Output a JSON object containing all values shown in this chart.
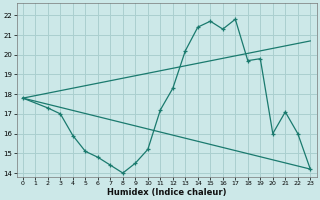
{
  "xlabel": "Humidex (Indice chaleur)",
  "bg_color": "#cce8e8",
  "grid_color": "#aacfcf",
  "line_color": "#1a7a6e",
  "xlim": [
    -0.5,
    23.5
  ],
  "ylim": [
    13.8,
    22.6
  ],
  "yticks": [
    14,
    15,
    16,
    17,
    18,
    19,
    20,
    21,
    22
  ],
  "xticks": [
    0,
    1,
    2,
    3,
    4,
    5,
    6,
    7,
    8,
    9,
    10,
    11,
    12,
    13,
    14,
    15,
    16,
    17,
    18,
    19,
    20,
    21,
    22,
    23
  ],
  "line1_x": [
    0,
    2,
    3,
    4,
    5,
    6,
    7,
    8,
    9,
    10,
    11,
    12,
    13,
    14,
    15,
    16,
    17,
    18,
    19,
    20,
    21,
    22,
    23
  ],
  "line1_y": [
    17.8,
    17.3,
    17.0,
    15.9,
    15.1,
    14.8,
    14.4,
    14.0,
    14.5,
    15.2,
    17.2,
    18.3,
    20.2,
    21.4,
    21.7,
    21.3,
    21.8,
    19.7,
    19.8,
    16.0,
    17.1,
    16.0,
    14.2
  ],
  "line2_x": [
    0,
    23
  ],
  "line2_y": [
    17.8,
    20.7
  ],
  "line3_x": [
    0,
    23
  ],
  "line3_y": [
    17.8,
    14.2
  ]
}
